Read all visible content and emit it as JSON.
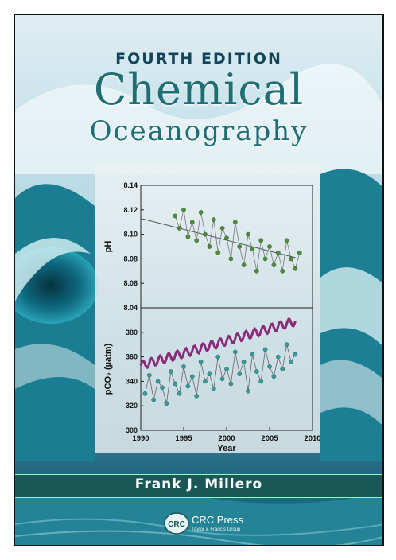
{
  "cover": {
    "edition": "FOURTH EDITION",
    "title_line1": "Chemical",
    "title_line2": "Oceanography",
    "author": "Frank J. Millero",
    "publisher": "CRC Press",
    "publisher_sub": "Taylor & Francis Group",
    "publisher_logo_text": "CRC"
  },
  "chart_data": {
    "type": "scatter",
    "xlabel": "Year",
    "xlim": [
      1990,
      2010
    ],
    "xticks": [
      "1990",
      "1995",
      "2000",
      "2005",
      "2010"
    ],
    "panels": [
      {
        "ylabel": "pH",
        "ylim": [
          8.04,
          8.14
        ],
        "yticks": [
          "8.14",
          "8.12",
          "8.10",
          "8.08",
          "8.06",
          "8.04"
        ],
        "series": [
          {
            "color": "#4e8c3a",
            "x": [
              1994.0,
              1994.5,
              1995.0,
              1995.5,
              1996.0,
              1996.5,
              1997.0,
              1997.5,
              1998.0,
              1998.5,
              1999.0,
              1999.5,
              2000.0,
              2000.5,
              2001.0,
              2001.5,
              2002.0,
              2002.5,
              2003.0,
              2003.5,
              2004.0,
              2004.5,
              2005.0,
              2005.5,
              2006.0,
              2006.5,
              2007.0,
              2007.5,
              2008.0,
              2008.5
            ],
            "y": [
              8.115,
              8.105,
              8.12,
              8.098,
              8.11,
              8.095,
              8.118,
              8.1,
              8.09,
              8.112,
              8.085,
              8.105,
              8.097,
              8.08,
              8.11,
              8.09,
              8.075,
              8.1,
              8.088,
              8.07,
              8.095,
              8.08,
              8.09,
              8.075,
              8.085,
              8.07,
              8.095,
              8.08,
              8.072,
              8.085
            ]
          },
          {
            "trend": [
              [
                1990,
                8.113
              ],
              [
                2008,
                8.081
              ]
            ]
          }
        ]
      },
      {
        "ylabel": "pCO₂ (µatm)",
        "ylim": [
          300,
          400
        ],
        "yticks": [
          "380",
          "360",
          "340",
          "320",
          "300"
        ],
        "series": [
          {
            "color": "#3a9a9a",
            "x": [
              1990.5,
              1991.0,
              1991.5,
              1992.0,
              1992.5,
              1993.0,
              1993.5,
              1994.0,
              1994.5,
              1995.0,
              1995.5,
              1996.0,
              1996.5,
              1997.0,
              1997.5,
              1998.0,
              1998.5,
              1999.0,
              1999.5,
              2000.0,
              2000.5,
              2001.0,
              2001.5,
              2002.0,
              2002.5,
              2003.0,
              2003.5,
              2004.0,
              2004.5,
              2005.0,
              2005.5,
              2006.0,
              2006.5,
              2007.0,
              2007.5,
              2008.0
            ],
            "y": [
              330,
              345,
              325,
              340,
              335,
              322,
              348,
              338,
              330,
              352,
              336,
              344,
              328,
              356,
              340,
              346,
              334,
              360,
              342,
              350,
              338,
              364,
              346,
              356,
              332,
              362,
              348,
              340,
              366,
              352,
              344,
              360,
              350,
              370,
              356,
              362
            ]
          },
          {
            "color": "#8a2a7a",
            "x": [
              1990,
              2008
            ],
            "y": [
              353,
              389
            ],
            "amplitude": 3.5
          }
        ]
      }
    ]
  }
}
